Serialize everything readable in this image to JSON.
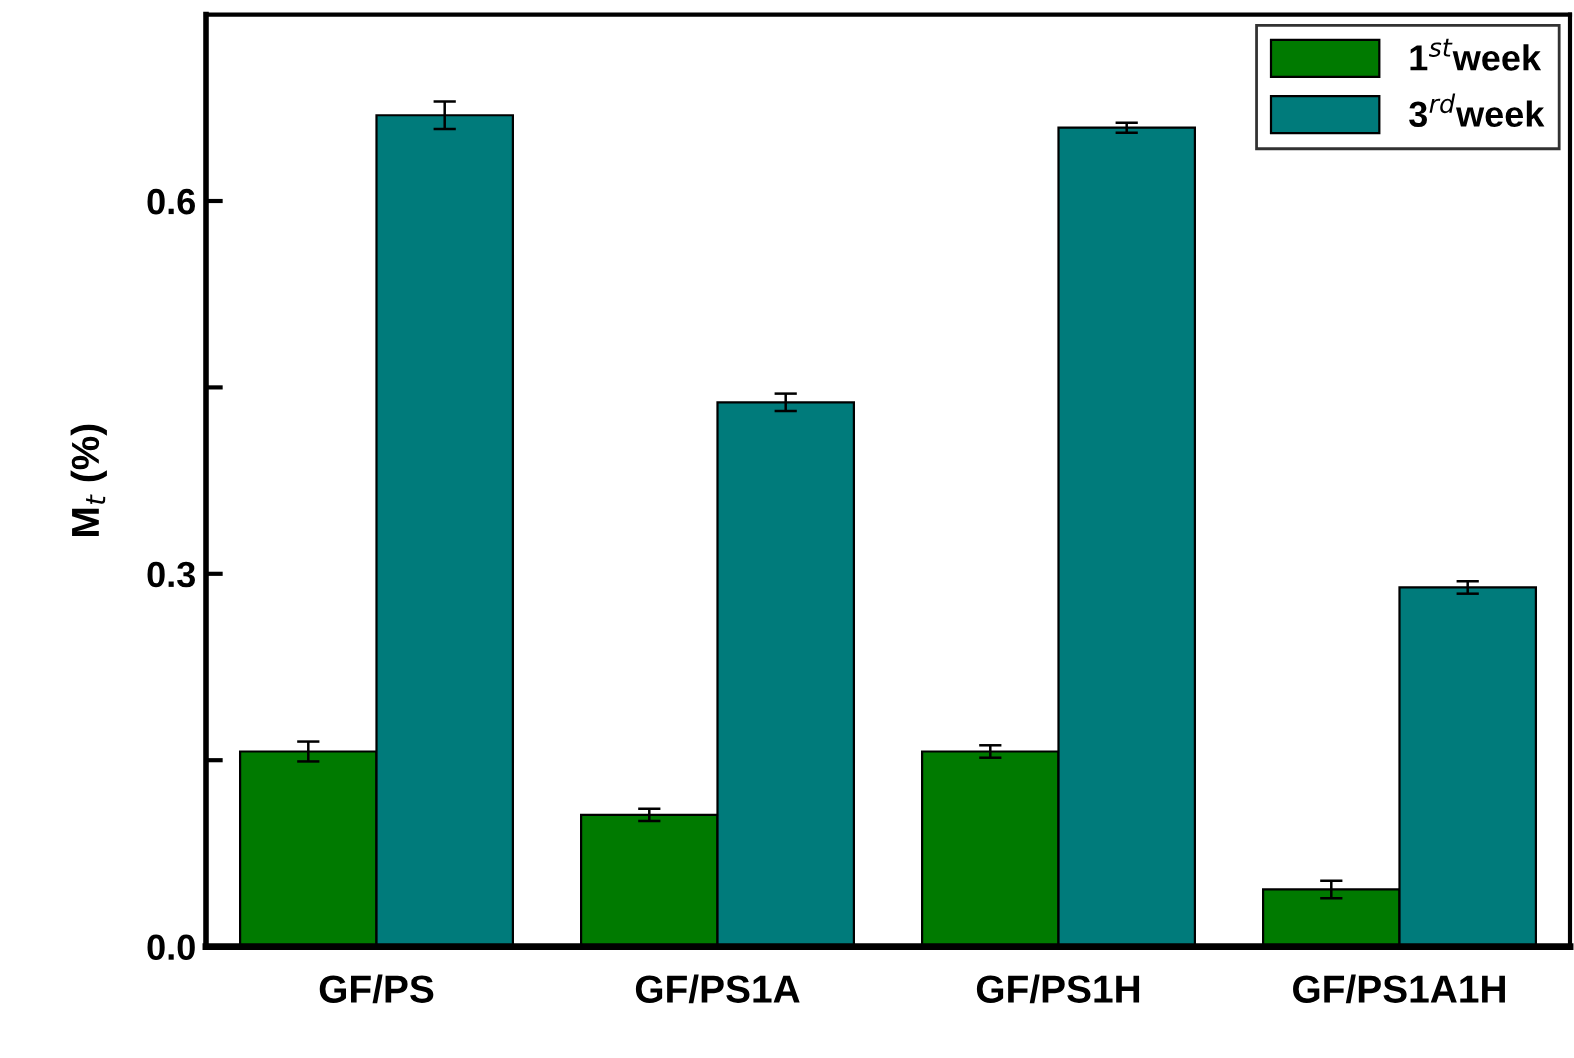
{
  "chart_data": {
    "type": "bar",
    "ylabel": "M$_{t}$ (%)",
    "categories": [
      "GF/PS",
      "GF/PS1A",
      "GF/PS1H",
      "GF/PS1A1H"
    ],
    "series": [
      {
        "name": "1$^{st}$week",
        "color": "#007a00",
        "values": [
          0.157,
          0.106,
          0.157,
          0.046
        ],
        "errors": [
          0.008,
          0.005,
          0.005,
          0.007
        ]
      },
      {
        "name": "3$^{rd}$week",
        "color": "#007b7b",
        "values": [
          0.669,
          0.438,
          0.659,
          0.289
        ],
        "errors": [
          0.011,
          0.007,
          0.004,
          0.005
        ]
      }
    ],
    "ylim": [
      0,
      0.75
    ],
    "yticks": [
      {
        "value": 0,
        "label": "0.0"
      },
      {
        "value": 0.15,
        "label": null
      },
      0.3,
      {
        "value": 0.45,
        "label": null
      },
      0.6
    ],
    "legend": "top right",
    "grid": false
  }
}
